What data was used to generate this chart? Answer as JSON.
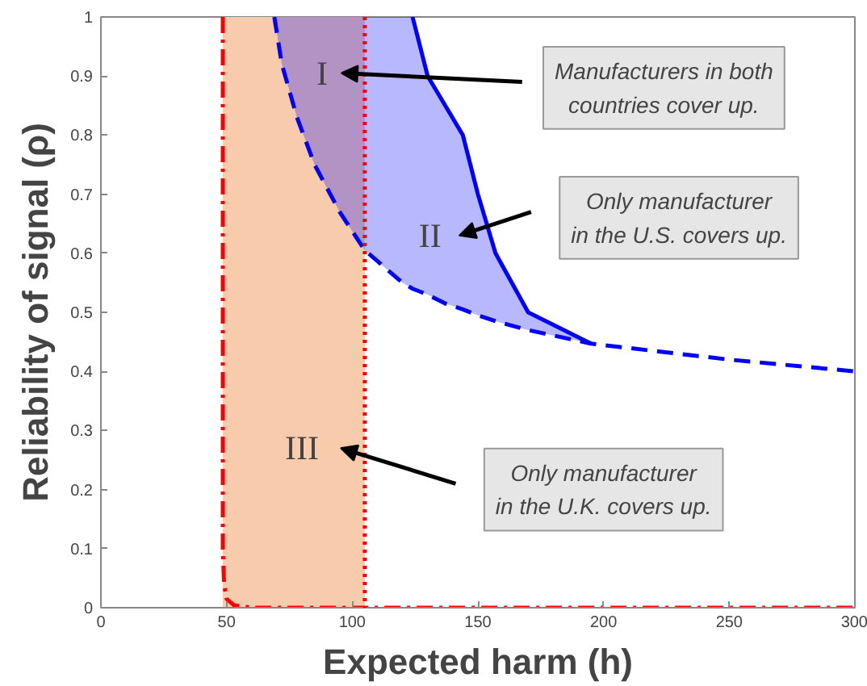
{
  "chart_data": {
    "type": "line",
    "xlabel": "Expected harm (h)",
    "ylabel": "Reliability of signal (ρ)",
    "xlim": [
      0,
      300
    ],
    "ylim": [
      0,
      1
    ],
    "xticks": [
      0,
      50,
      100,
      150,
      200,
      250,
      300
    ],
    "yticks": [
      0,
      0.1,
      0.2,
      0.3,
      0.4,
      0.5,
      0.6,
      0.7,
      0.8,
      0.9,
      1
    ],
    "grid": false,
    "bands": [
      {
        "axis": "x",
        "from": 48.5,
        "to": 105,
        "color": "#f8cbad"
      }
    ],
    "series": [
      {
        "color": "#ff0000",
        "line_style": "dashdot",
        "x": [
          48.5,
          48.5,
          49,
          50,
          53,
          60,
          300
        ],
        "values": [
          1,
          0.1,
          0.04,
          0.015,
          0.004,
          0,
          0
        ]
      },
      {
        "color": "#0000ff",
        "line_style": "dashed",
        "x": [
          69,
          72,
          78,
          85,
          95,
          105,
          120,
          124,
          130,
          137,
          144,
          150,
          157,
          170,
          195,
          250,
          300
        ],
        "values": [
          1,
          0.92,
          0.83,
          0.75,
          0.67,
          0.605,
          0.55,
          0.54,
          0.53,
          0.515,
          0.505,
          0.495,
          0.485,
          0.47,
          0.447,
          0.42,
          0.4
        ],
        "lower": [
          1,
          0.92,
          0.83,
          0.75,
          0.67,
          0.605,
          0.55,
          0.54,
          0.53,
          0.515,
          0.505,
          0.495,
          0.485,
          0.47,
          0.447,
          null,
          null
        ],
        "upper": [
          1,
          1,
          1,
          1,
          1,
          1,
          1,
          1,
          0.9,
          0.85,
          0.8,
          0.7,
          0.6,
          0.5,
          0.447,
          null,
          null
        ]
      },
      {
        "color": "#0000ff",
        "line_style": "solid",
        "x": [
          124,
          130,
          137,
          144,
          150,
          157,
          170,
          195
        ],
        "values": [
          1,
          0.9,
          0.85,
          0.8,
          0.7,
          0.6,
          0.5,
          0.447
        ]
      }
    ],
    "ref_lines": [
      {
        "axis": "x",
        "value": 105,
        "color": "#ff0000",
        "line_style": "dotted"
      }
    ],
    "annotations": [
      "I",
      "II",
      "III",
      "Manufacturers in both\ncountries cover up.",
      "Only manufacturer\nin the U.S. covers up.",
      "Only manufacturer\nin the U.K. covers up."
    ]
  }
}
